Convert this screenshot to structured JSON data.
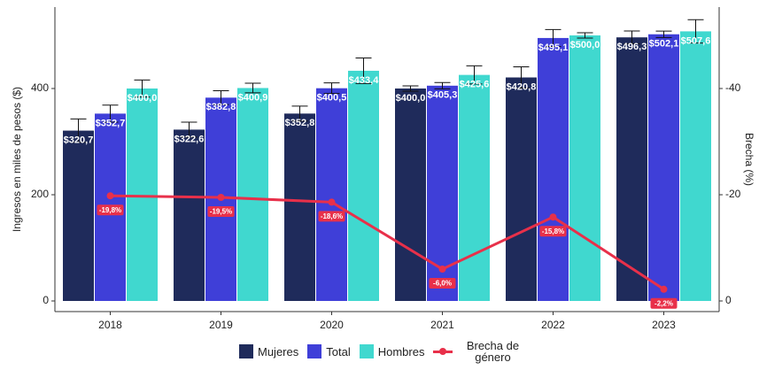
{
  "chart_data": {
    "type": "bar-line",
    "categories": [
      "2018",
      "2019",
      "2020",
      "2021",
      "2022",
      "2023"
    ],
    "y_label": "Ingresos en miles de pesos ($)",
    "y2_label": "Brecha (%)",
    "ylim": [
      -20,
      553.3
    ],
    "yticks": [
      0,
      200,
      400
    ],
    "y2lim": [
      2,
      -55.33
    ],
    "y2ticks": [
      0,
      -20,
      -40
    ],
    "series": [
      {
        "name": "Mujeres",
        "color": "#1f2b5b",
        "values": [
          320.7,
          322.6,
          352.8,
          400.0,
          420.8,
          496.3
        ],
        "value_labels": [
          "$320,7",
          "$322,6",
          "$352,8",
          "$400,0",
          "$420,8",
          "$496,3"
        ],
        "errors": [
          22,
          14,
          14,
          5,
          20,
          12
        ]
      },
      {
        "name": "Total",
        "color": "#3f3fd8",
        "values": [
          352.7,
          382.8,
          400.5,
          405.3,
          495.1,
          502.1
        ],
        "value_labels": [
          "$352,7",
          "$382,8",
          "$400,5",
          "$405,3",
          "$495,1",
          "$502,1"
        ],
        "errors": [
          16,
          13,
          10,
          6,
          16,
          6
        ]
      },
      {
        "name": "Hombres",
        "color": "#40d8cf",
        "values": [
          400.0,
          400.9,
          433.4,
          425.6,
          500.0,
          507.6
        ],
        "value_labels": [
          "$400,0",
          "$400,9",
          "$433,4",
          "$425,6",
          "$500,0",
          "$507,6"
        ],
        "errors": [
          16,
          9,
          24,
          17,
          5,
          22
        ]
      },
      {
        "name": "Brecha de género",
        "color": "#e8304a",
        "axis": "y2",
        "type": "line",
        "values": [
          -19.8,
          -19.5,
          -18.6,
          -6.0,
          -15.8,
          -2.2
        ],
        "value_labels": [
          "-19,8%",
          "-19,5%",
          "-18,6%",
          "-6,0%",
          "-15,8%",
          "-2,2%"
        ]
      }
    ]
  }
}
